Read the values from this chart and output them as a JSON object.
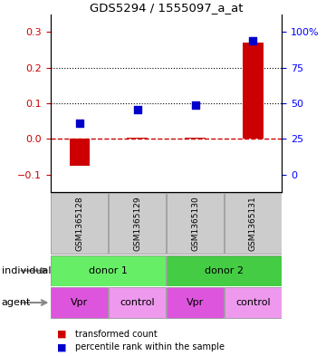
{
  "title": "GDS5294 / 1555097_a_at",
  "samples": [
    "GSM1365128",
    "GSM1365129",
    "GSM1365130",
    "GSM1365131"
  ],
  "x_positions": [
    1,
    2,
    3,
    4
  ],
  "transformed_counts": [
    -0.075,
    0.002,
    0.002,
    0.27
  ],
  "percentile_ranks": [
    0.045,
    0.082,
    0.095,
    0.275
  ],
  "left_ylim": [
    -0.15,
    0.35
  ],
  "left_yticks": [
    -0.1,
    0.0,
    0.1,
    0.2,
    0.3
  ],
  "right_tick_positions": [
    -0.1,
    0.0,
    0.1,
    0.2,
    0.3
  ],
  "right_tick_labels": [
    "0",
    "25",
    "50",
    "75",
    "100%"
  ],
  "bar_color": "#cc0000",
  "dot_color": "#0000cc",
  "bar_width": 0.35,
  "dot_size": 40,
  "individual_labels": [
    "donor 1",
    "donor 2"
  ],
  "agent_labels": [
    "Vpr",
    "control",
    "Vpr",
    "control"
  ],
  "individual_color": "#66ee66",
  "individual_color2": "#44cc44",
  "agent_color_vpr": "#dd55dd",
  "agent_color_control": "#ee99ee",
  "gsm_bg_color": "#cccccc",
  "legend_tc": "transformed count",
  "legend_pr": "percentile rank within the sample",
  "arrow_label_individual": "individual",
  "arrow_label_agent": "agent"
}
